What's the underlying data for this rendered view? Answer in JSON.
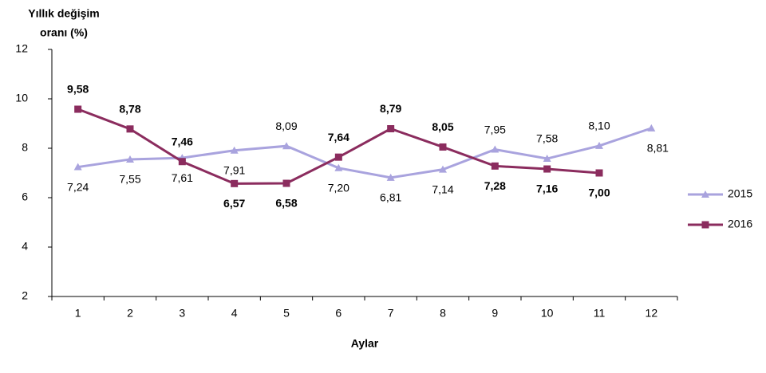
{
  "chart_data": {
    "type": "line",
    "ylabel": [
      "Yıllık değişim",
      "oranı (%)"
    ],
    "xlabel": "Aylar",
    "categories": [
      "1",
      "2",
      "3",
      "4",
      "5",
      "6",
      "7",
      "8",
      "9",
      "10",
      "11",
      "12"
    ],
    "ylim": [
      2,
      12
    ],
    "yticks": [
      2,
      4,
      6,
      8,
      10,
      12
    ],
    "grid": false,
    "legend": "right",
    "series": [
      {
        "name": "2015",
        "color": "#a9a3de",
        "marker": "triangle",
        "values": [
          7.24,
          7.55,
          7.61,
          7.91,
          8.09,
          7.2,
          6.81,
          7.14,
          7.95,
          7.58,
          8.1,
          8.81
        ],
        "value_labels": [
          "7,24",
          "7,55",
          "7,61",
          "7,91",
          "8,09",
          "7,20",
          "6,81",
          "7,14",
          "7,95",
          "7,58",
          "8,10",
          "8,81"
        ]
      },
      {
        "name": "2016",
        "color": "#8b2c5e",
        "marker": "square",
        "values": [
          9.58,
          8.78,
          7.46,
          6.57,
          6.58,
          7.64,
          8.79,
          8.05,
          7.28,
          7.16,
          7.0,
          null
        ],
        "value_labels": [
          "9,58",
          "8,78",
          "7,46",
          "6,57",
          "6,58",
          "7,64",
          "8,79",
          "8,05",
          "7,28",
          "7,16",
          "7,00",
          null
        ]
      }
    ]
  }
}
